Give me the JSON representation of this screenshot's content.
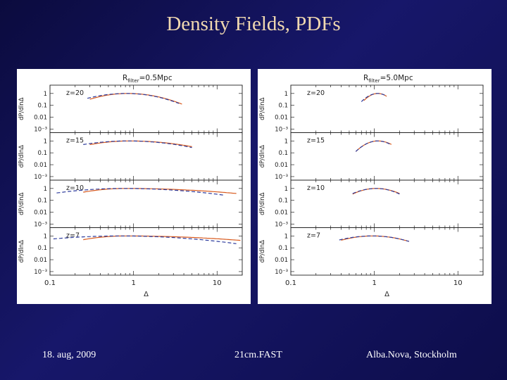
{
  "slide": {
    "title": "Density Fields, PDFs",
    "footer_left": "18. aug, 2009",
    "footer_center": "21cm.FAST",
    "footer_right": "Alba.Nova, Stockholm"
  },
  "colors": {
    "background": "#10105a",
    "title": "#f0d8b0",
    "solid_curve": "#d85a1e",
    "dashed_curve": "#2c3a9c"
  },
  "chart_data": [
    {
      "type": "line",
      "title": "R_filter=0.5Mpc",
      "title_main": "R",
      "title_sub": "filter",
      "title_rest": "=0.5Mpc",
      "xlabel": "Δ",
      "ylabel": "dP/dlnΔ",
      "x_scale": "log",
      "y_scale": "log",
      "xlim": [
        0.1,
        20
      ],
      "ylim": [
        0.0005,
        5
      ],
      "xticks": [
        "0.1",
        "1",
        "10"
      ],
      "yticks": [
        "1",
        "0.1",
        "0.01",
        "10⁻³"
      ],
      "subplots": [
        {
          "label": "z=20",
          "series": [
            {
              "style": "solid",
              "peak": 0.85,
              "sigma_left": 0.3,
              "sigma_right": 0.32,
              "xmin": 0.3,
              "xmax": 3.8
            },
            {
              "style": "dashed",
              "peak": 0.82,
              "sigma_left": 0.34,
              "sigma_right": 0.32,
              "xmin": 0.28,
              "xmax": 3.5
            }
          ]
        },
        {
          "label": "z=15",
          "series": [
            {
              "style": "solid",
              "peak": 0.9,
              "sigma_left": 0.4,
              "sigma_right": 0.5,
              "xmin": 0.3,
              "xmax": 5
            },
            {
              "style": "dashed",
              "peak": 0.85,
              "sigma_left": 0.45,
              "sigma_right": 0.48,
              "xmin": 0.25,
              "xmax": 5
            }
          ]
        },
        {
          "label": "z=10",
          "series": [
            {
              "style": "solid",
              "peak": 0.8,
              "sigma_left": 0.42,
              "sigma_right": 0.95,
              "xmin": 0.25,
              "xmax": 17
            },
            {
              "style": "dashed",
              "peak": 0.75,
              "sigma_left": 0.6,
              "sigma_right": 0.75,
              "xmin": 0.12,
              "xmax": 12
            }
          ]
        },
        {
          "label": "z=7",
          "series": [
            {
              "style": "solid",
              "peak": 0.8,
              "sigma_left": 0.42,
              "sigma_right": 1.05,
              "xmin": 0.25,
              "xmax": 19
            },
            {
              "style": "dashed",
              "peak": 0.7,
              "sigma_left": 0.75,
              "sigma_right": 0.8,
              "xmin": 0.11,
              "xmax": 17
            }
          ]
        }
      ]
    },
    {
      "type": "line",
      "title": "R_filter=5.0Mpc",
      "title_main": "R",
      "title_sub": "filter",
      "title_rest": "=5.0Mpc",
      "xlabel": "Δ",
      "ylabel": "dP/dlnΔ",
      "x_scale": "log",
      "y_scale": "log",
      "xlim": [
        0.1,
        20
      ],
      "ylim": [
        0.0005,
        5
      ],
      "xticks": [
        "0.1",
        "1",
        "10"
      ],
      "yticks": [
        "1",
        "0.1",
        "0.01",
        "10⁻³"
      ],
      "subplots": [
        {
          "label": "z=20",
          "series": [
            {
              "style": "solid",
              "peak": 1.1,
              "sigma_left": 0.1,
              "sigma_right": 0.1,
              "xmin": 0.75,
              "xmax": 1.4
            },
            {
              "style": "dashed",
              "peak": 1.1,
              "sigma_left": 0.11,
              "sigma_right": 0.1,
              "xmin": 0.7,
              "xmax": 1.4
            }
          ]
        },
        {
          "label": "z=15",
          "series": [
            {
              "style": "solid",
              "peak": 1.1,
              "sigma_left": 0.13,
              "sigma_right": 0.14,
              "xmin": 0.6,
              "xmax": 1.6
            },
            {
              "style": "dashed",
              "peak": 1.1,
              "sigma_left": 0.13,
              "sigma_right": 0.13,
              "xmin": 0.6,
              "xmax": 1.55
            }
          ]
        },
        {
          "label": "z=10",
          "series": [
            {
              "style": "solid",
              "peak": 1.05,
              "sigma_left": 0.19,
              "sigma_right": 0.2,
              "xmin": 0.55,
              "xmax": 2.0
            },
            {
              "style": "dashed",
              "peak": 1.05,
              "sigma_left": 0.2,
              "sigma_right": 0.19,
              "xmin": 0.55,
              "xmax": 2.0
            }
          ]
        },
        {
          "label": "z=7",
          "series": [
            {
              "style": "solid",
              "peak": 0.95,
              "sigma_left": 0.29,
              "sigma_right": 0.3,
              "xmin": 0.4,
              "xmax": 2.6
            },
            {
              "style": "dashed",
              "peak": 0.95,
              "sigma_left": 0.32,
              "sigma_right": 0.3,
              "xmin": 0.38,
              "xmax": 2.6
            }
          ]
        }
      ]
    }
  ]
}
